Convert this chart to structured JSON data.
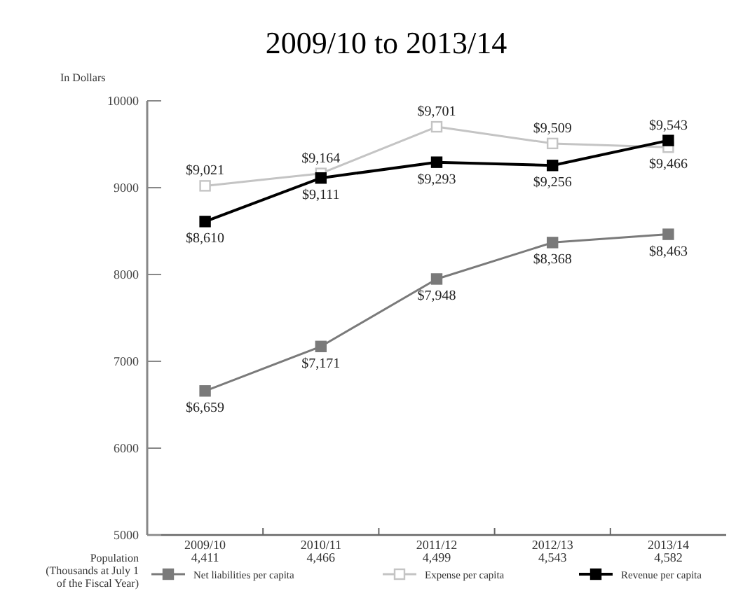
{
  "chart_data": {
    "type": "line",
    "title": "2009/10 to 2013/14",
    "ylabel": "In Dollars",
    "categories": [
      "2009/10",
      "2010/11",
      "2011/12",
      "2012/13",
      "2013/14"
    ],
    "series": [
      {
        "name": "Net liabilities per capita",
        "color": "#7a7a7a",
        "values": [
          6659,
          7171,
          7948,
          8368,
          8463
        ],
        "value_labels": [
          "$6,659",
          "$7,171",
          "$7,948",
          "$8,368",
          "$8,463"
        ]
      },
      {
        "name": "Expense per capita",
        "color": "#c4c4c4",
        "values": [
          9021,
          9164,
          9701,
          9509,
          9466
        ],
        "value_labels": [
          "$9,021",
          "$9,164",
          "$9,701",
          "$9,509",
          "$9,466"
        ]
      },
      {
        "name": "Revenue per capita",
        "color": "#000000",
        "values": [
          8610,
          9111,
          9293,
          9256,
          9543
        ],
        "value_labels": [
          "$8,610",
          "$9,111",
          "$9,293",
          "$9,256",
          "$9,543"
        ]
      }
    ],
    "ylim": [
      5000,
      10000
    ],
    "yticks": [
      5000,
      6000,
      7000,
      8000,
      9000,
      10000
    ],
    "grid": false,
    "legend": "bottom",
    "marker": "square",
    "line_style": "solid",
    "annotations": [
      "Population (Thousands at July 1 of the Fiscal Year)",
      "4,411",
      "4,466",
      "4,499",
      "4,543",
      "4,582"
    ]
  }
}
